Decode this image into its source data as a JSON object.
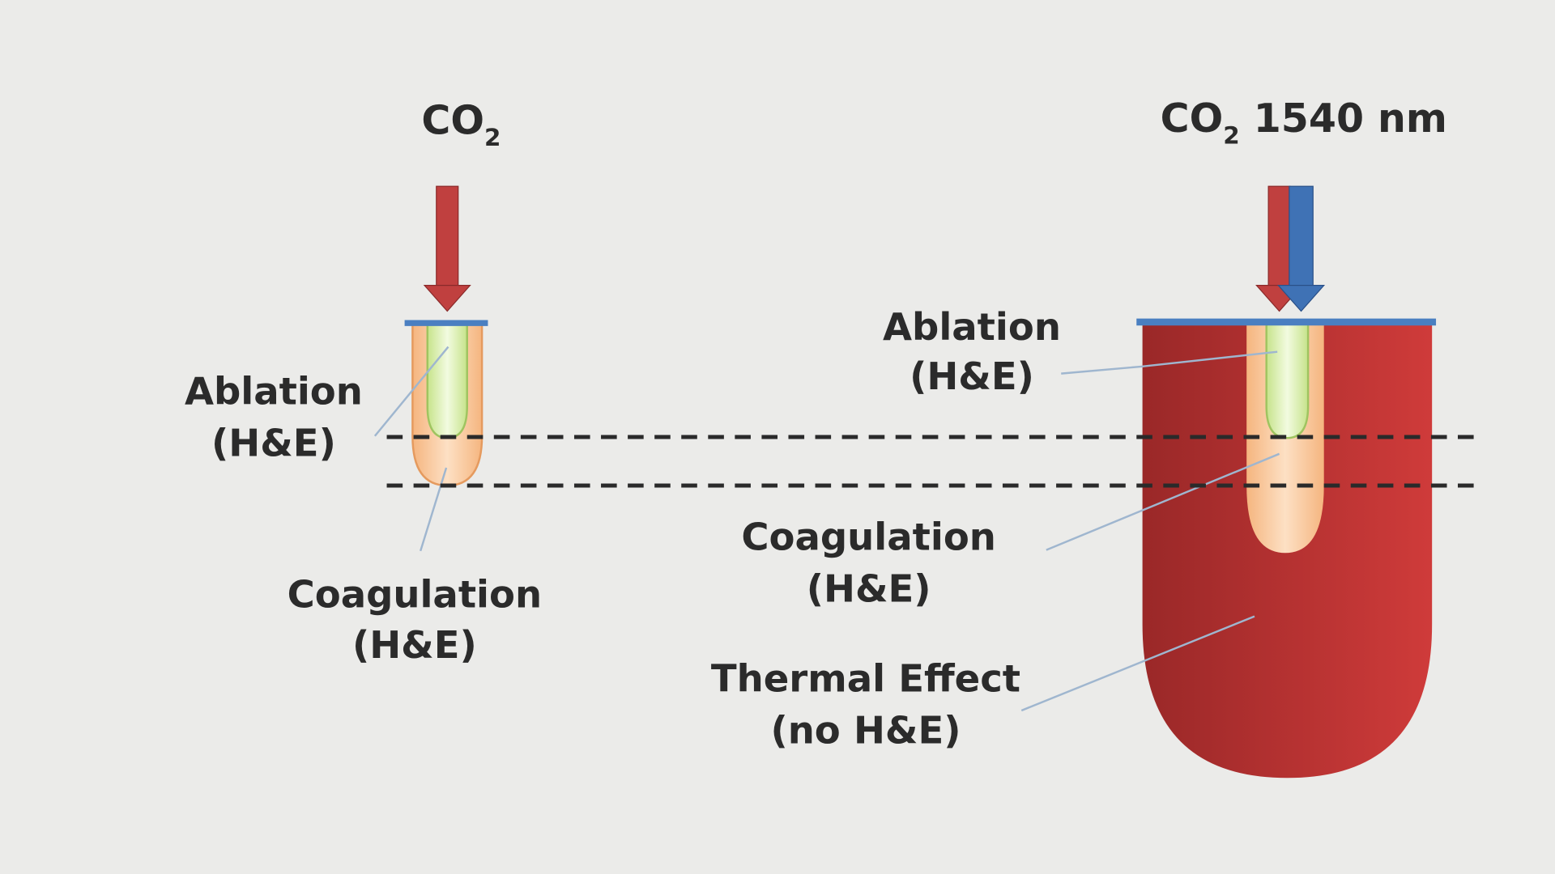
{
  "left": {
    "title_main": "CO",
    "title_sub": "2",
    "labels": {
      "ablation": [
        "Ablation",
        "(H&E)"
      ],
      "coagulation": [
        "Coagulation",
        "(H&E)"
      ]
    }
  },
  "right": {
    "title_main": "CO",
    "title_sub": "2",
    "title_rest": " 1540 nm",
    "labels": {
      "ablation": [
        "Ablation",
        "(H&E)"
      ],
      "coagulation": [
        "Coagulation",
        "(H&E)"
      ],
      "thermal": [
        "Thermal Effect",
        "(no H&E)"
      ]
    }
  },
  "colors": {
    "background": "#ebebe9",
    "co2_arrow": "#c0403f",
    "nm1540_arrow": "#3f72b5",
    "surface_line": "#4a7fc1",
    "ablation_zone": "#dff3b8",
    "coagulation_zone": "#f7bd8a",
    "thermal_zone": "#b83030"
  }
}
